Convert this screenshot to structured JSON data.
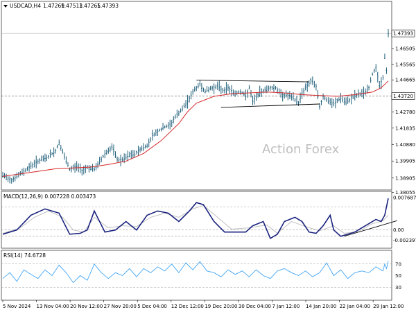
{
  "chart_data": [
    {
      "type": "candlestick",
      "title": "USDCAD,H4",
      "ohlc_readout": [
        "1.47269",
        "1.47513",
        "1.47265",
        "1.47393"
      ],
      "ylim": [
        1.3845,
        1.487
      ],
      "y_ticks": [
        "1.46505",
        "1.45565",
        "1.44665",
        "1.42780",
        "1.41835",
        "1.40880",
        "1.39905",
        "1.38905",
        "1.38055"
      ],
      "price_marker": {
        "label": "1.47393",
        "value": 1.47393
      },
      "hline": {
        "label": "1.43720",
        "value": 1.4372
      },
      "moving_average_color": "#d62728",
      "bar_color": "#1f5f7a",
      "watermark": "Action Forex",
      "price_path": [
        [
          0,
          1.3905
        ],
        [
          5,
          1.388
        ],
        [
          10,
          1.3915
        ],
        [
          15,
          1.3955
        ],
        [
          20,
          1.399
        ],
        [
          25,
          1.401
        ],
        [
          30,
          1.405
        ],
        [
          32,
          1.41
        ],
        [
          35,
          1.4015
        ],
        [
          38,
          1.394
        ],
        [
          42,
          1.396
        ],
        [
          45,
          1.3935
        ],
        [
          48,
          1.3955
        ],
        [
          52,
          1.394
        ],
        [
          55,
          1.3985
        ],
        [
          58,
          1.4035
        ],
        [
          62,
          1.407
        ],
        [
          65,
          1.4
        ],
        [
          68,
          1.3995
        ],
        [
          72,
          1.4025
        ],
        [
          75,
          1.403
        ],
        [
          78,
          1.406
        ],
        [
          82,
          1.408
        ],
        [
          85,
          1.414
        ],
        [
          88,
          1.4165
        ],
        [
          92,
          1.419
        ],
        [
          95,
          1.42
        ],
        [
          98,
          1.425
        ],
        [
          102,
          1.4295
        ],
        [
          105,
          1.434
        ],
        [
          108,
          1.4395
        ],
        [
          110,
          1.442
        ],
        [
          112,
          1.444
        ],
        [
          115,
          1.44
        ],
        [
          118,
          1.4415
        ],
        [
          122,
          1.443
        ],
        [
          125,
          1.4405
        ],
        [
          128,
          1.442
        ],
        [
          132,
          1.4385
        ],
        [
          135,
          1.44
        ],
        [
          138,
          1.437
        ],
        [
          140,
          1.442
        ],
        [
          142,
          1.434
        ],
        [
          145,
          1.438
        ],
        [
          148,
          1.4405
        ],
        [
          152,
          1.442
        ],
        [
          155,
          1.442
        ],
        [
          158,
          1.438
        ],
        [
          162,
          1.4375
        ],
        [
          165,
          1.436
        ],
        [
          168,
          1.433
        ],
        [
          170,
          1.439
        ],
        [
          172,
          1.442
        ],
        [
          175,
          1.446
        ],
        [
          178,
          1.443
        ],
        [
          180,
          1.431
        ],
        [
          182,
          1.437
        ],
        [
          185,
          1.434
        ],
        [
          188,
          1.4325
        ],
        [
          192,
          1.436
        ],
        [
          195,
          1.433
        ],
        [
          198,
          1.436
        ],
        [
          202,
          1.438
        ],
        [
          205,
          1.439
        ],
        [
          208,
          1.442
        ],
        [
          210,
          1.45
        ],
        [
          212,
          1.4545
        ],
        [
          214,
          1.443
        ],
        [
          216,
          1.448
        ],
        [
          217,
          1.46
        ],
        [
          218,
          1.452
        ],
        [
          219,
          1.4739
        ]
      ],
      "ma_path": [
        [
          0,
          1.39
        ],
        [
          10,
          1.3915
        ],
        [
          20,
          1.393
        ],
        [
          30,
          1.3945
        ],
        [
          40,
          1.395
        ],
        [
          50,
          1.3955
        ],
        [
          60,
          1.397
        ],
        [
          70,
          1.399
        ],
        [
          80,
          1.4035
        ],
        [
          90,
          1.411
        ],
        [
          100,
          1.421
        ],
        [
          105,
          1.428
        ],
        [
          110,
          1.433
        ],
        [
          120,
          1.437
        ],
        [
          130,
          1.4385
        ],
        [
          140,
          1.439
        ],
        [
          150,
          1.4395
        ],
        [
          160,
          1.439
        ],
        [
          170,
          1.438
        ],
        [
          180,
          1.4375
        ],
        [
          190,
          1.437
        ],
        [
          200,
          1.438
        ],
        [
          210,
          1.4395
        ],
        [
          215,
          1.442
        ],
        [
          219,
          1.446
        ]
      ],
      "trendlines": [
        [
          [
            110,
            1.4465
          ],
          [
            174,
            1.4455
          ]
        ],
        [
          [
            124,
            1.4305
          ],
          [
            180,
            1.4325
          ]
        ]
      ]
    },
    {
      "type": "line",
      "title": "MACD(12,26,9) 0.007228 0.003473",
      "ylim": [
        -0.004,
        0.0085
      ],
      "y_ticks": [
        "0.007687",
        "0.00",
        "-0.002397"
      ],
      "dashed_levels": [
        0.0055,
        0.0,
        -0.0015
      ],
      "series": [
        {
          "color": "#1a237e",
          "values": [
            [
              0,
              -0.001
            ],
            [
              8,
              0.0
            ],
            [
              16,
              0.0035
            ],
            [
              24,
              0.005
            ],
            [
              32,
              0.004
            ],
            [
              38,
              -0.001
            ],
            [
              44,
              -0.0008
            ],
            [
              48,
              0.0
            ],
            [
              52,
              0.0045
            ],
            [
              58,
              -0.0005
            ],
            [
              64,
              0.0
            ],
            [
              70,
              0.002
            ],
            [
              76,
              0.0
            ],
            [
              82,
              0.0035
            ],
            [
              88,
              0.0045
            ],
            [
              94,
              0.004
            ],
            [
              100,
              0.002
            ],
            [
              106,
              0.0045
            ],
            [
              110,
              0.0065
            ],
            [
              114,
              0.006
            ],
            [
              120,
              0.002
            ],
            [
              126,
              -0.0005
            ],
            [
              132,
              -0.0005
            ],
            [
              138,
              -0.0005
            ],
            [
              142,
              0.001
            ],
            [
              148,
              0.002
            ],
            [
              152,
              -0.002
            ],
            [
              156,
              -0.001
            ],
            [
              160,
              0.002
            ],
            [
              166,
              0.003
            ],
            [
              170,
              0.002
            ],
            [
              174,
              -0.0005
            ],
            [
              178,
              -0.0008
            ],
            [
              182,
              0.001
            ],
            [
              186,
              0.0035
            ],
            [
              188,
              0.0
            ],
            [
              192,
              -0.0015
            ],
            [
              196,
              -0.001
            ],
            [
              200,
              -0.0005
            ],
            [
              204,
              0.0005
            ],
            [
              208,
              0.0015
            ],
            [
              212,
              0.0025
            ],
            [
              215,
              0.002
            ],
            [
              217,
              0.0035
            ],
            [
              219,
              0.0075
            ]
          ]
        },
        {
          "color": "#bdbdbd",
          "values": [
            [
              0,
              -0.0008
            ],
            [
              10,
              0.0005
            ],
            [
              18,
              0.003
            ],
            [
              26,
              0.0045
            ],
            [
              34,
              0.003
            ],
            [
              40,
              0.0
            ],
            [
              46,
              -0.0005
            ],
            [
              52,
              0.003
            ],
            [
              60,
              0.0005
            ],
            [
              68,
              0.001
            ],
            [
              76,
              0.0008
            ],
            [
              84,
              0.003
            ],
            [
              92,
              0.004
            ],
            [
              100,
              0.003
            ],
            [
              108,
              0.005
            ],
            [
              114,
              0.0058
            ],
            [
              122,
              0.003
            ],
            [
              130,
              0.0002
            ],
            [
              140,
              0.0005
            ],
            [
              150,
              0.0012
            ],
            [
              156,
              -0.0008
            ],
            [
              164,
              0.002
            ],
            [
              172,
              0.0008
            ],
            [
              180,
              -0.0002
            ],
            [
              188,
              0.001
            ],
            [
              194,
              -0.0008
            ],
            [
              202,
              -0.0004
            ],
            [
              210,
              0.0015
            ],
            [
              216,
              0.0022
            ],
            [
              219,
              0.0035
            ]
          ]
        }
      ],
      "trendline": [
        [
          194,
          -0.0015
        ],
        [
          224,
          0.0022
        ]
      ]
    },
    {
      "type": "line",
      "title": "RSI(14) 74.6728",
      "ylim": [
        10,
        90
      ],
      "y_ticks": [
        "70",
        "50",
        "30"
      ],
      "dashed_levels": [
        70,
        30
      ],
      "series": [
        {
          "color": "#42a5f5",
          "values": [
            [
              0,
              45
            ],
            [
              4,
              55
            ],
            [
              8,
              40
            ],
            [
              12,
              60
            ],
            [
              16,
              52
            ],
            [
              20,
              45
            ],
            [
              24,
              60
            ],
            [
              28,
              50
            ],
            [
              32,
              68
            ],
            [
              36,
              55
            ],
            [
              40,
              38
            ],
            [
              44,
              50
            ],
            [
              48,
              42
            ],
            [
              52,
              70
            ],
            [
              56,
              55
            ],
            [
              60,
              45
            ],
            [
              64,
              55
            ],
            [
              68,
              50
            ],
            [
              72,
              62
            ],
            [
              76,
              48
            ],
            [
              80,
              62
            ],
            [
              84,
              55
            ],
            [
              88,
              65
            ],
            [
              92,
              58
            ],
            [
              96,
              70
            ],
            [
              100,
              55
            ],
            [
              104,
              72
            ],
            [
              108,
              60
            ],
            [
              112,
              74
            ],
            [
              116,
              58
            ],
            [
              120,
              55
            ],
            [
              124,
              48
            ],
            [
              128,
              60
            ],
            [
              132,
              52
            ],
            [
              136,
              58
            ],
            [
              140,
              48
            ],
            [
              144,
              60
            ],
            [
              148,
              50
            ],
            [
              152,
              45
            ],
            [
              156,
              58
            ],
            [
              160,
              62
            ],
            [
              164,
              55
            ],
            [
              168,
              50
            ],
            [
              172,
              58
            ],
            [
              176,
              48
            ],
            [
              180,
              55
            ],
            [
              184,
              72
            ],
            [
              188,
              50
            ],
            [
              192,
              60
            ],
            [
              196,
              45
            ],
            [
              200,
              55
            ],
            [
              204,
              58
            ],
            [
              208,
              55
            ],
            [
              212,
              65
            ],
            [
              216,
              58
            ],
            [
              217,
              70
            ],
            [
              218,
              62
            ],
            [
              219,
              75
            ]
          ]
        }
      ]
    }
  ],
  "x_axis": {
    "ticks": [
      "5 Nov 2024",
      "13 Nov 04:00",
      "20 Nov 12:00",
      "27 Nov 20:00",
      "5 Dec 04:00",
      "12 Dec 12:00",
      "19 Dec 20:00",
      "30 Dec 04:00",
      "7 Jan 12:00",
      "14 Jan 20:00",
      "22 Jan 04:00",
      "29 Jan 12:00"
    ]
  },
  "header": {
    "symbol": "USDCAD,H4",
    "menu_icon": "triangle-down-icon"
  }
}
